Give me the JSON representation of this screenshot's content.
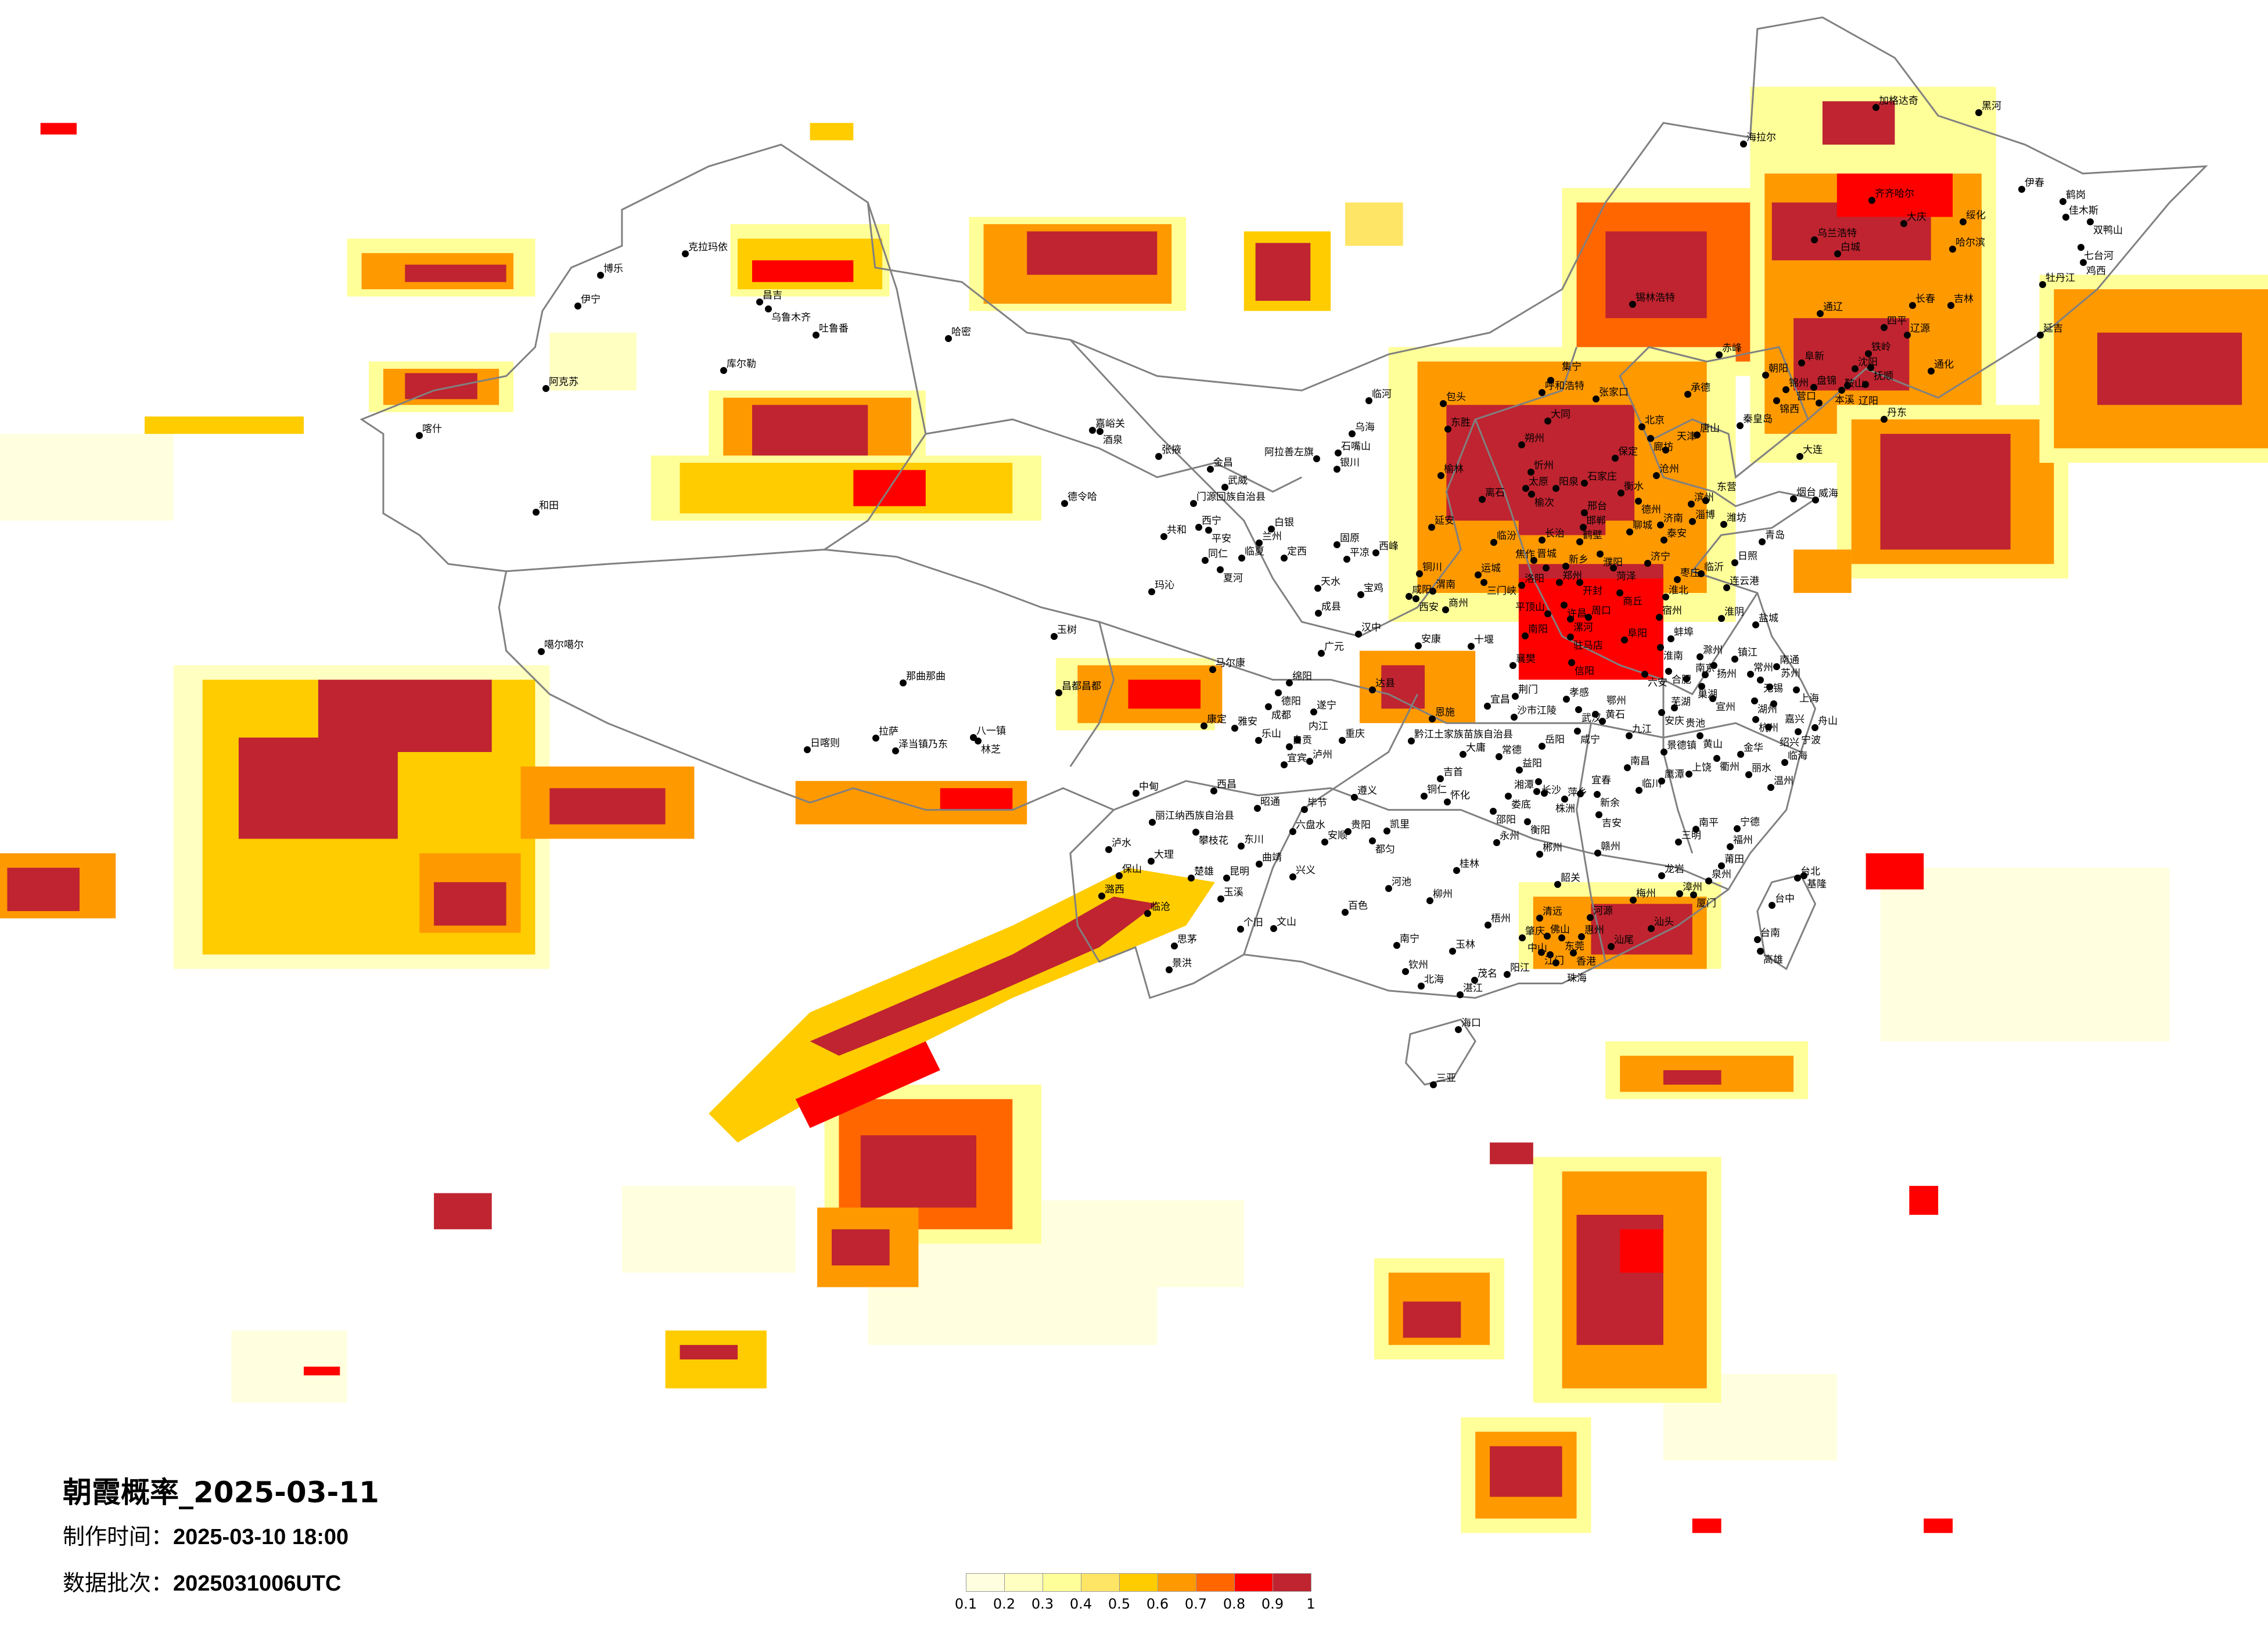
{
  "title": "朝霞概率_2025-03-11",
  "info": {
    "made_time_label": "制作时间：",
    "made_time_value": "2025-03-10 18:00",
    "batch_label": "数据批次：",
    "batch_value": "2025031006UTC"
  },
  "legend": {
    "colors": [
      "#FFFFE0",
      "#FFFFC2",
      "#FFFF99",
      "#FFE566",
      "#FFCC00",
      "#FF9900",
      "#FF6600",
      "#FF0000",
      "#BF2430"
    ],
    "labels": [
      "0.1",
      "0.2",
      "0.3",
      "0.4",
      "0.5",
      "0.6",
      "0.7",
      "0.8",
      "0.9",
      "1"
    ]
  },
  "colors": {
    "border": "#808080",
    "city_dot": "#000000",
    "background": "#ffffff"
  },
  "cities": [
    "临河",
    "包头",
    "呼和浩特",
    "集宁",
    "张家口",
    "承德",
    "大同",
    "北京",
    "廊坊",
    "唐山",
    "天津",
    "乌海",
    "东胜",
    "石嘴山",
    "银川",
    "朔州",
    "保定",
    "忻州",
    "榆林",
    "沧州",
    "太原",
    "榆次",
    "阳泉",
    "石家庄",
    "衡水",
    "离石",
    "德州",
    "滨州",
    "东营",
    "邢台",
    "延安",
    "邯郸",
    "济南",
    "淄博",
    "潍坊",
    "聊城",
    "泰安",
    "临汾",
    "长治",
    "鹤壁",
    "濮阳",
    "晋城",
    "菏泽",
    "济宁",
    "临沂",
    "枣庄",
    "运城",
    "三门峡",
    "洛阳",
    "郑州",
    "开封",
    "焦作",
    "新乡",
    "铜川",
    "渭南",
    "咸阳",
    "西安",
    "宝鸡",
    "商丘",
    "商州",
    "许昌",
    "淮北",
    "宿州",
    "平顶山",
    "漯河",
    "周口",
    "淮阴",
    "汉中",
    "南阳",
    "驻马店",
    "阜阳",
    "蚌埠",
    "淮南",
    "安康",
    "十堰",
    "固原",
    "平凉",
    "西峰",
    "连云港",
    "加格达奇",
    "黑河",
    "海拉尔",
    "伊春",
    "鹤岗",
    "齐齐哈尔",
    "佳木斯",
    "双鸭山",
    "大庆",
    "绥化",
    "乌兰浩特",
    "七台河",
    "白城",
    "哈尔滨",
    "鸡西",
    "牡丹江",
    "长春",
    "吉林",
    "通辽",
    "延吉",
    "四平",
    "辽源",
    "赤峰",
    "铁岭",
    "阜新",
    "沈阳",
    "抚顺",
    "通化",
    "朝阳",
    "锦州",
    "盘锦",
    "鞍山",
    "辽阳",
    "本溪",
    "锦西",
    "营口",
    "秦皇岛",
    "丹东",
    "大连",
    "锡林浩特",
    "襄樊",
    "信阳",
    "六安",
    "合肥",
    "滁州",
    "扬州",
    "镇江",
    "南京",
    "南通",
    "常州",
    "无锡",
    "巢湖",
    "芜湖",
    "宣州",
    "苏州",
    "上海",
    "湖州",
    "嘉兴",
    "荆门",
    "宜昌",
    "孝感",
    "武汉",
    "鄂州",
    "黄石",
    "安庆",
    "贵池",
    "沙市江陵",
    "恩施",
    "杭州",
    "绍兴",
    "宁波",
    "舟山",
    "咸宁",
    "九江",
    "黄山",
    "黔江土家族苗族自治县",
    "岳阳",
    "大庸",
    "常德",
    "景德镇",
    "衢州",
    "金华",
    "临海",
    "益阳",
    "南昌",
    "吉首",
    "上饶",
    "鹰潭",
    "丽水",
    "长沙",
    "温州",
    "湘潭",
    "株洲",
    "临川",
    "铜仁",
    "娄底",
    "萍乡",
    "宜春",
    "新余",
    "怀化",
    "邵阳",
    "吉安",
    "衡阳",
    "南平",
    "宁德",
    "三明",
    "永州",
    "福州",
    "郴州",
    "赣州",
    "莆田",
    "桂林",
    "龙岩",
    "泉州",
    "台北",
    "基隆",
    "韶关",
    "柳州",
    "梅州",
    "漳州",
    "厦门",
    "台中",
    "清远",
    "河源",
    "梧州",
    "汕头",
    "肇庆",
    "佛山",
    "东莞",
    "惠州",
    "台南",
    "南宁",
    "汕尾",
    "高雄",
    "玉林",
    "江门",
    "中山",
    "香港",
    "珠海",
    "钦州",
    "阳江",
    "茂名",
    "北海",
    "湛江",
    "海口",
    "三亚",
    "嘉峪关",
    "酒泉",
    "张掖",
    "金昌",
    "武威",
    "德令哈",
    "门源回族自治县",
    "阿拉善左旗",
    "西宁",
    "平安",
    "共和",
    "白银",
    "兰州",
    "同仁",
    "临夏",
    "夏河",
    "定西",
    "天水",
    "玛沁",
    "成县",
    "玉树",
    "广元",
    "马尔康",
    "昌都昌都",
    "绵阳",
    "德阳",
    "达县",
    "成都",
    "遂宁",
    "康定",
    "雅安",
    "乐山",
    "自贡",
    "内江",
    "重庆",
    "宜宾",
    "泸州",
    "中甸",
    "西昌",
    "遵义",
    "昭通",
    "毕节",
    "丽江纳西族自治县",
    "攀枝花",
    "六盘水",
    "贵阳",
    "凯里",
    "安顺",
    "都匀",
    "泸水",
    "东川",
    "曲靖",
    "大理",
    "保山",
    "楚雄",
    "昆明",
    "兴义",
    "河池",
    "玉溪",
    "潞西",
    "临沧",
    "百色",
    "个旧",
    "文山",
    "思茅",
    "景洪",
    "克拉玛依",
    "博乐",
    "伊宁",
    "昌吉",
    "乌鲁木齐",
    "吐鲁番",
    "哈密",
    "库尔勒",
    "阿克苏",
    "喀什",
    "和田",
    "噶尔噶尔",
    "那曲那曲",
    "拉萨",
    "日喀则",
    "泽当镇乃东",
    "八一镇",
    "林芝",
    "烟台",
    "威海",
    "青岛",
    "日照",
    "盐城"
  ]
}
